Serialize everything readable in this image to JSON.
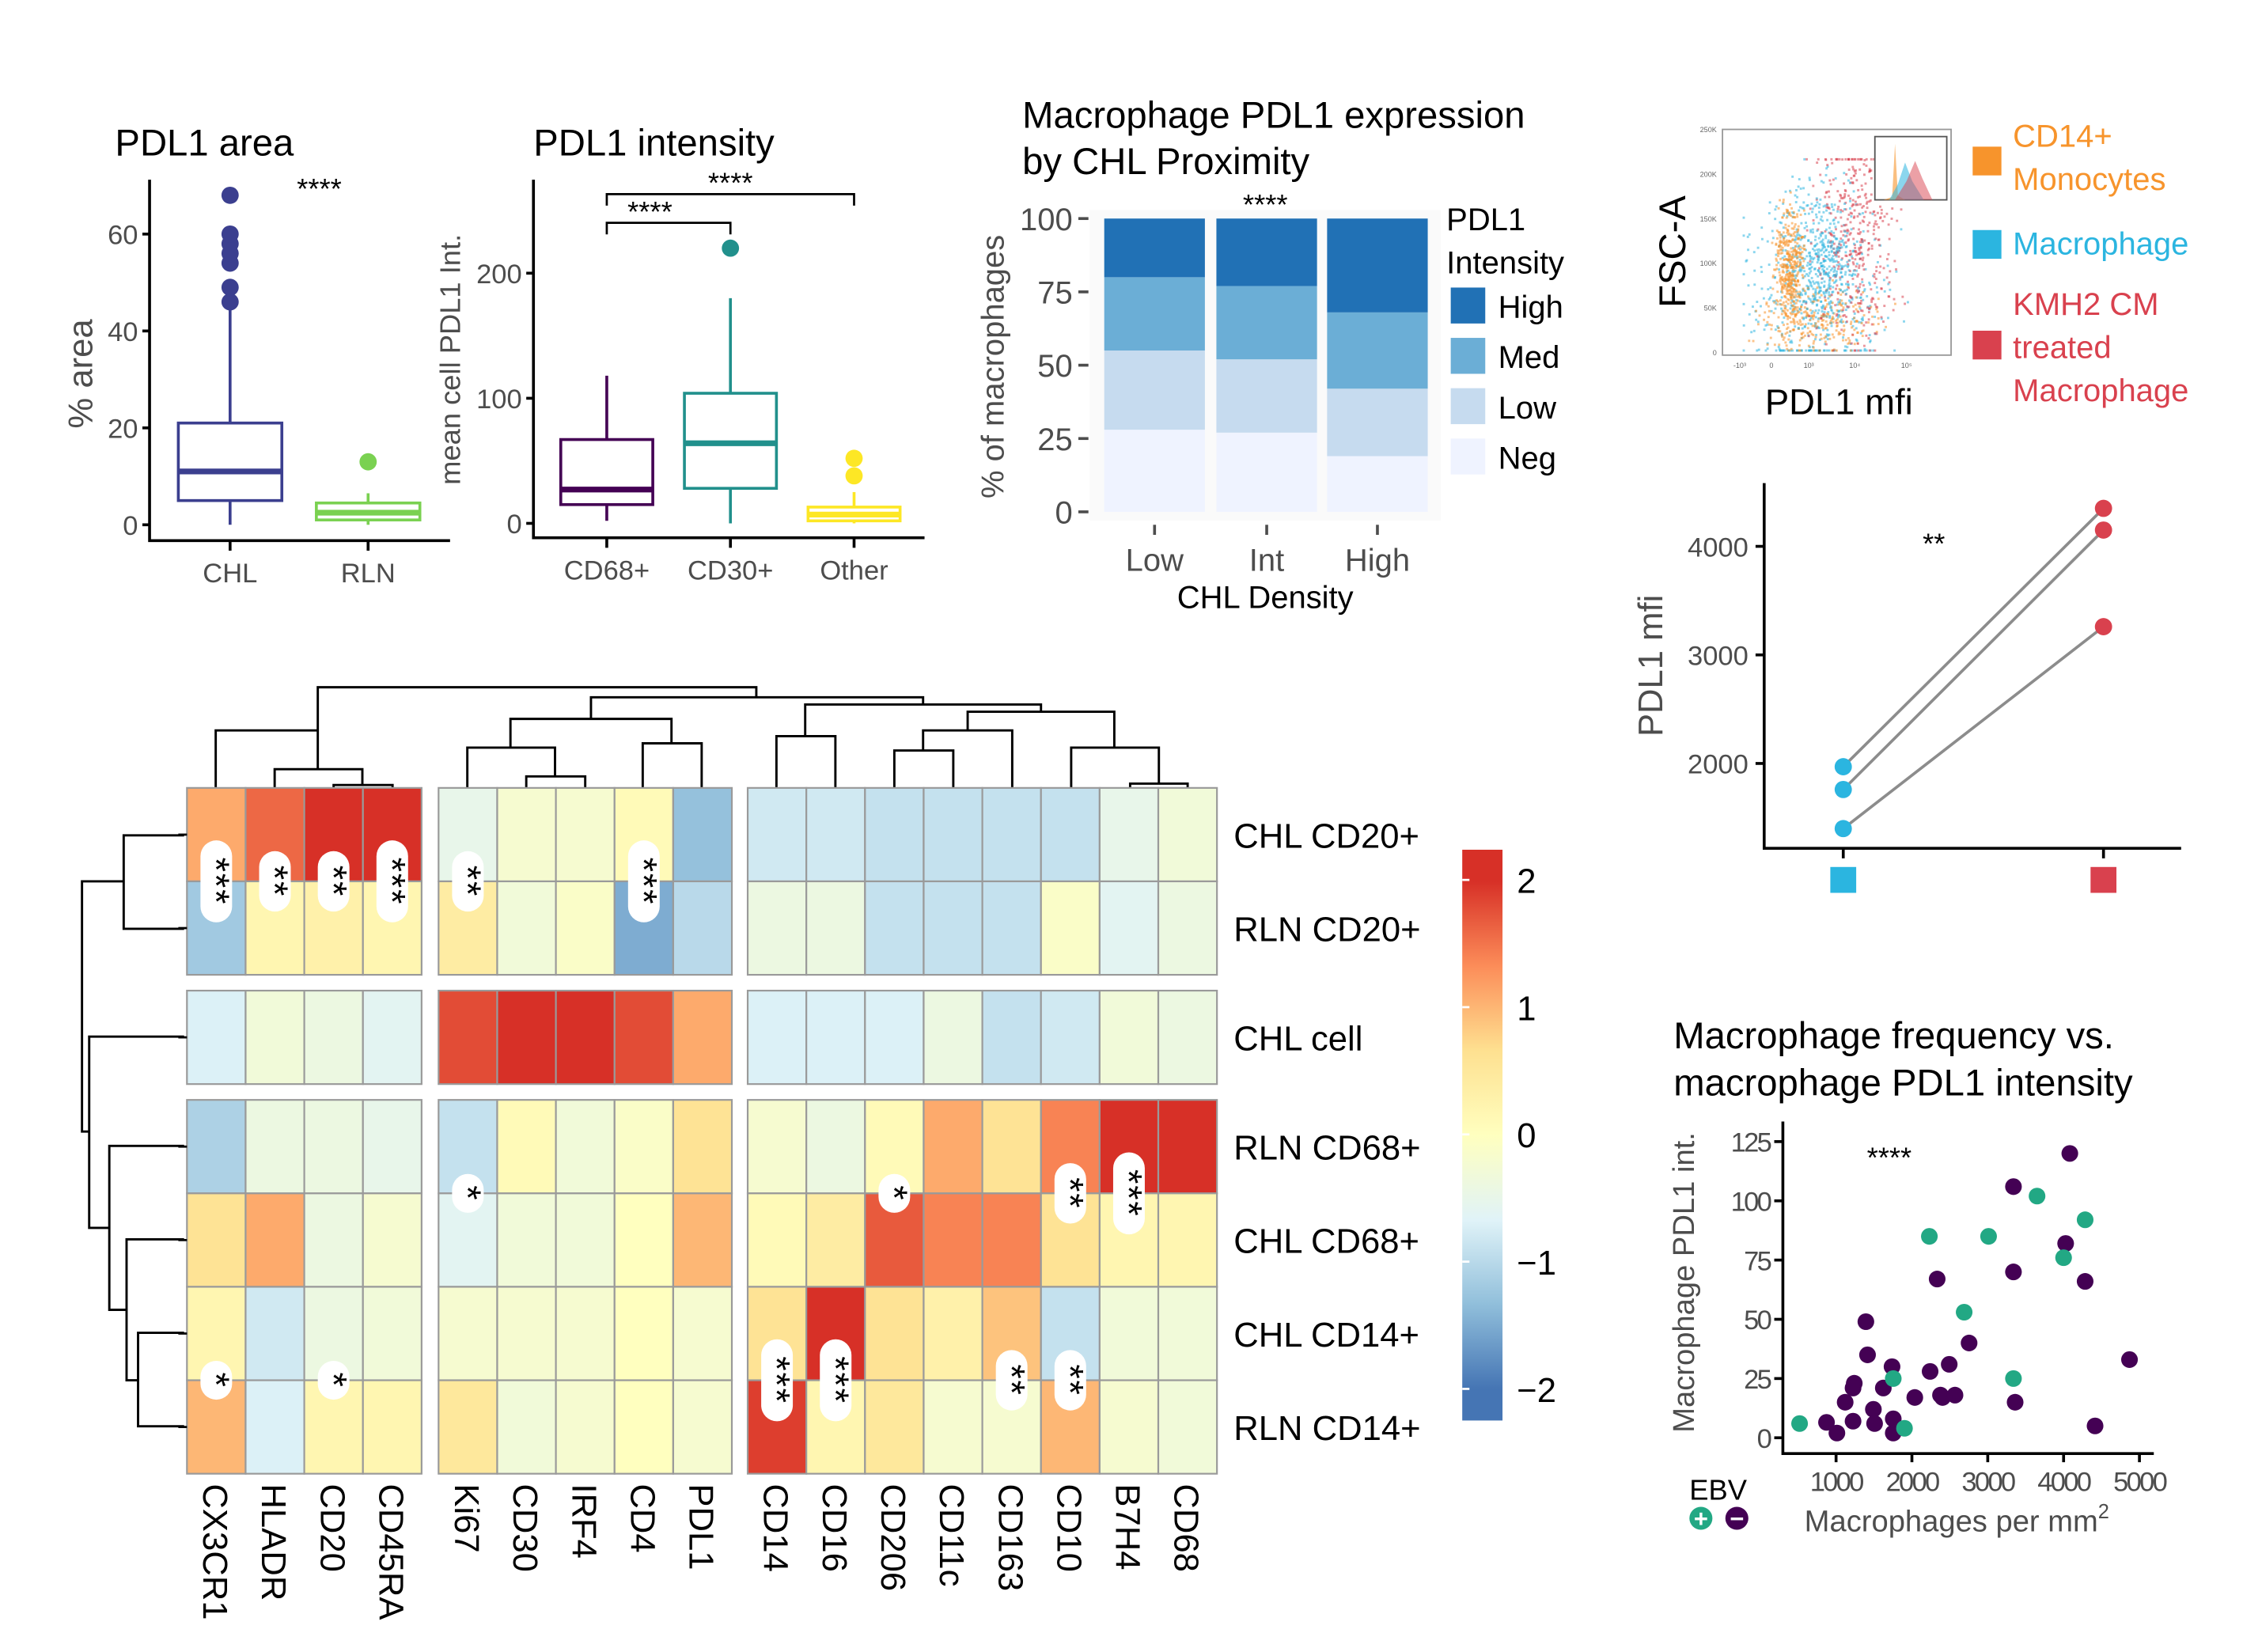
{
  "chart_data": [
    {
      "type": "box",
      "title": "PDL1 area",
      "ylabel": "% area",
      "ylim": [
        0,
        70
      ],
      "yticks": [
        "0",
        "20",
        "40",
        "60"
      ],
      "significance": "****",
      "categories": [
        "CHL",
        "RLN"
      ],
      "colors": [
        "#3b3f8f",
        "#7ad151"
      ],
      "boxes": [
        {
          "min": 0,
          "q1": 5,
          "median": 11,
          "q3": 21,
          "max": 45,
          "outliers": [
            46,
            49,
            54,
            56,
            58,
            60,
            68
          ]
        },
        {
          "min": 0,
          "q1": 1,
          "median": 2.5,
          "q3": 4.5,
          "max": 6.5,
          "outliers": [
            13
          ]
        }
      ]
    },
    {
      "type": "box",
      "title": "PDL1 intensity",
      "ylabel": "mean cell PDL1 Int.",
      "yticks": [
        "0",
        "100",
        "200"
      ],
      "categories": [
        "CD68+",
        "CD30+",
        "Other"
      ],
      "colors": [
        "#440154",
        "#21908c",
        "#fde725"
      ],
      "boxes": [
        {
          "min": 2,
          "q1": 15,
          "median": 27,
          "q3": 67,
          "max": 118,
          "outliers": []
        },
        {
          "min": 0,
          "q1": 28,
          "median": 64,
          "q3": 104,
          "max": 180,
          "outliers": [
            220
          ]
        },
        {
          "min": 0,
          "q1": 2,
          "median": 7,
          "q3": 13,
          "max": 25,
          "outliers": [
            38,
            52
          ]
        }
      ],
      "comparisons": [
        {
          "from": "CD68+",
          "to": "CD30+",
          "label": "****"
        },
        {
          "from": "CD68+",
          "to": "Other",
          "label": "****"
        }
      ]
    },
    {
      "type": "bar",
      "stacked": true,
      "title": "Macrophage PDL1 expression by CHL Proximity",
      "title_lines": [
        "Macrophage PDL1 expression",
        "by CHL Proximity"
      ],
      "xlabel": "CHL Density",
      "ylabel": "% of macrophages",
      "ylim": [
        0,
        100
      ],
      "yticks": [
        "0",
        "25",
        "50",
        "75",
        "100"
      ],
      "significance": "****",
      "categories": [
        "Low",
        "Int",
        "High"
      ],
      "legend_title": [
        "PDL1",
        "Intensity"
      ],
      "legend_position": "right",
      "series": [
        {
          "name": "Neg",
          "color": "#eff3ff",
          "values": [
            28,
            27,
            19
          ]
        },
        {
          "name": "Low",
          "color": "#c6dbef",
          "values": [
            27,
            25,
            23
          ]
        },
        {
          "name": "Med",
          "color": "#6baed6",
          "values": [
            25,
            25,
            26
          ]
        },
        {
          "name": "High",
          "color": "#2171b5",
          "values": [
            20,
            23,
            32
          ]
        }
      ]
    },
    {
      "type": "scatter",
      "subtype": "flow-cytometry",
      "xlabel": "PDL1 mfi",
      "ylabel": "FSC-A",
      "yticks": [
        "0",
        "50K",
        "100K",
        "150K",
        "200K",
        "250K"
      ],
      "xticks": [
        "-10³",
        "0",
        "10³",
        "10⁴",
        "10⁵"
      ],
      "legend": [
        {
          "label": [
            "CD14+",
            "Monocytes"
          ],
          "color": "#f7942c"
        },
        {
          "label": [
            "Macrophage"
          ],
          "color": "#2bb5e0"
        },
        {
          "label": [
            "KMH2 CM",
            "treated",
            "Macrophage"
          ],
          "color": "#d9414e"
        }
      ]
    },
    {
      "type": "line",
      "subtype": "paired",
      "ylabel": "PDL1 mfi",
      "ylim": [
        1200,
        4600
      ],
      "yticks": [
        "2000",
        "3000",
        "4000"
      ],
      "significance": "**",
      "groups": [
        {
          "marker_color": "#2bb5e0"
        },
        {
          "marker_color": "#d9414e"
        }
      ],
      "pairs": [
        [
          1970,
          4350
        ],
        [
          1760,
          4150
        ],
        [
          1400,
          3260
        ]
      ]
    },
    {
      "type": "scatter",
      "title_lines": [
        "Macrophage frequency vs.",
        "macrophage PDL1 intensity"
      ],
      "xlabel": "Macrophages per mm",
      "xlabel_sup": "2",
      "ylabel": "Macrophage PDL1 int.",
      "xlim": [
        300,
        5100
      ],
      "ylim": [
        -5,
        130
      ],
      "xticks": [
        "1000",
        "2000",
        "3000",
        "4000",
        "5000"
      ],
      "yticks": [
        "0",
        "25",
        "50",
        "75",
        "100",
        "125"
      ],
      "significance": "****",
      "legend_title": "EBV",
      "legend": [
        {
          "symbol": "+",
          "color": "#22a884"
        },
        {
          "symbol": "−",
          "color": "#440154"
        }
      ],
      "points": [
        {
          "x": 519,
          "y": 6,
          "ebv": "+"
        },
        {
          "x": 874,
          "y": 6.5,
          "ebv": "-"
        },
        {
          "x": 1011,
          "y": 2,
          "ebv": "-"
        },
        {
          "x": 1120,
          "y": 15,
          "ebv": "-"
        },
        {
          "x": 1224,
          "y": 7,
          "ebv": "-"
        },
        {
          "x": 1240,
          "y": 23,
          "ebv": "-"
        },
        {
          "x": 1224,
          "y": 21,
          "ebv": "-"
        },
        {
          "x": 1393,
          "y": 49,
          "ebv": "-"
        },
        {
          "x": 1415,
          "y": 35,
          "ebv": "-"
        },
        {
          "x": 1492,
          "y": 12,
          "ebv": "-"
        },
        {
          "x": 1508,
          "y": 6,
          "ebv": "-"
        },
        {
          "x": 1623,
          "y": 21,
          "ebv": "-"
        },
        {
          "x": 1738,
          "y": 30,
          "ebv": "-"
        },
        {
          "x": 1754,
          "y": 25,
          "ebv": "+"
        },
        {
          "x": 1754,
          "y": 8,
          "ebv": "-"
        },
        {
          "x": 1754,
          "y": 2,
          "ebv": "-"
        },
        {
          "x": 1902,
          "y": 4,
          "ebv": "+"
        },
        {
          "x": 2038,
          "y": 17,
          "ebv": "-"
        },
        {
          "x": 2240,
          "y": 28,
          "ebv": "-"
        },
        {
          "x": 2230,
          "y": 85,
          "ebv": "+"
        },
        {
          "x": 2333,
          "y": 67,
          "ebv": "-"
        },
        {
          "x": 2377,
          "y": 18,
          "ebv": "-"
        },
        {
          "x": 2404,
          "y": 17,
          "ebv": "-"
        },
        {
          "x": 2492,
          "y": 31,
          "ebv": "-"
        },
        {
          "x": 2568,
          "y": 18,
          "ebv": "-"
        },
        {
          "x": 2689,
          "y": 53,
          "ebv": "+"
        },
        {
          "x": 2754,
          "y": 40,
          "ebv": "-"
        },
        {
          "x": 3011,
          "y": 85,
          "ebv": "+"
        },
        {
          "x": 3339,
          "y": 106,
          "ebv": "-"
        },
        {
          "x": 3339,
          "y": 70,
          "ebv": "-"
        },
        {
          "x": 3339,
          "y": 25,
          "ebv": "+"
        },
        {
          "x": 3361,
          "y": 15,
          "ebv": "-"
        },
        {
          "x": 3650,
          "y": 102,
          "ebv": "+"
        },
        {
          "x": 4082,
          "y": 120,
          "ebv": "-"
        },
        {
          "x": 4027,
          "y": 82,
          "ebv": "-"
        },
        {
          "x": 4000,
          "y": 76,
          "ebv": "+"
        },
        {
          "x": 4284,
          "y": 92,
          "ebv": "+"
        },
        {
          "x": 4284,
          "y": 66,
          "ebv": "-"
        },
        {
          "x": 4415,
          "y": 5,
          "ebv": "-"
        },
        {
          "x": 4869,
          "y": 33,
          "ebv": "-"
        }
      ]
    },
    {
      "type": "heatmap",
      "colormap": "RdYlBu (reversed)",
      "zlim": [
        -2,
        2
      ],
      "colorbar_ticks": [
        "2",
        "1",
        "0",
        "−1",
        "−2"
      ],
      "column_groups": [
        [
          "CX3CR1",
          "HLADR",
          "CD20",
          "CD45RA"
        ],
        [
          "Ki67",
          "CD30",
          "IRF4",
          "CD4",
          "PDL1"
        ],
        [
          "CD14",
          "CD16",
          "CD206",
          "CD11c",
          "CD163",
          "CD10",
          "B7H4",
          "CD68"
        ]
      ],
      "row_groups": [
        [
          "CHL CD20+",
          "RLN CD20+"
        ],
        [
          "CHL cell"
        ],
        [
          "RLN CD68+",
          "CHL CD68+",
          "CHL CD14+",
          "RLN CD14+"
        ]
      ],
      "values": [
        [
          1.1,
          1.6,
          2.1,
          2.1,
          -0.5,
          -0.2,
          -0.2,
          0.1,
          -1.3,
          -0.8,
          -0.8,
          -0.9,
          -0.9,
          -0.9,
          -0.9,
          -0.5,
          -0.3
        ],
        [
          -1.2,
          0.2,
          0.3,
          0.2,
          0.4,
          -0.3,
          -0.1,
          -1.5,
          -1.0,
          -0.4,
          -0.4,
          -0.9,
          -0.9,
          -0.9,
          -0.1,
          -0.6,
          -0.4
        ],
        [
          -0.7,
          -0.3,
          -0.4,
          -0.6,
          1.8,
          2.1,
          2.1,
          1.8,
          1.1,
          -0.7,
          -0.7,
          -0.7,
          -0.4,
          -0.9,
          -0.8,
          -0.3,
          -0.4
        ],
        [
          -1.1,
          -0.4,
          -0.4,
          -0.5,
          -0.9,
          0.1,
          -0.3,
          -0.1,
          0.6,
          -0.2,
          -0.4,
          0.1,
          1.1,
          0.6,
          1.4,
          2.1,
          2.1
        ],
        [
          0.6,
          1.1,
          -0.4,
          -0.2,
          -0.6,
          -0.3,
          -0.3,
          0.0,
          1.0,
          0.1,
          0.4,
          1.7,
          1.4,
          1.4,
          0.6,
          0.2,
          0.2
        ],
        [
          0.2,
          -0.8,
          -0.4,
          -0.3,
          -0.2,
          -0.2,
          -0.2,
          0.0,
          -0.2,
          0.6,
          2.0,
          0.6,
          0.3,
          0.9,
          -0.9,
          -0.3,
          -0.3
        ],
        [
          1.0,
          -0.7,
          0.2,
          0.2,
          0.5,
          -0.3,
          -0.2,
          0.0,
          -0.2,
          1.9,
          0.2,
          0.5,
          -0.2,
          -0.2,
          1.0,
          -0.2,
          -0.3
        ]
      ],
      "significance": [
        {
          "rows": [
            "CHL CD20+",
            "RLN CD20+"
          ],
          "column": "CX3CR1",
          "label": "***"
        },
        {
          "rows": [
            "CHL CD20+",
            "RLN CD20+"
          ],
          "column": "HLADR",
          "label": "**"
        },
        {
          "rows": [
            "CHL CD20+",
            "RLN CD20+"
          ],
          "column": "CD20",
          "label": "**"
        },
        {
          "rows": [
            "CHL CD20+",
            "RLN CD20+"
          ],
          "column": "CD45RA",
          "label": "***"
        },
        {
          "rows": [
            "CHL CD20+",
            "RLN CD20+"
          ],
          "column": "Ki67",
          "label": "**"
        },
        {
          "rows": [
            "CHL CD20+",
            "RLN CD20+"
          ],
          "column": "CD4",
          "label": "***"
        },
        {
          "rows": [
            "RLN CD68+",
            "CHL CD68+"
          ],
          "column": "Ki67",
          "label": "*"
        },
        {
          "rows": [
            "RLN CD68+",
            "CHL CD68+"
          ],
          "column": "CD206",
          "label": "*"
        },
        {
          "rows": [
            "RLN CD68+",
            "CHL CD68+"
          ],
          "column": "CD10",
          "label": "**"
        },
        {
          "rows": [
            "RLN CD68+",
            "CHL CD68+"
          ],
          "column": "B7H4",
          "label": "***"
        },
        {
          "rows": [
            "CHL CD14+",
            "RLN CD14+"
          ],
          "column": "CX3CR1",
          "label": "*"
        },
        {
          "rows": [
            "CHL CD14+",
            "RLN CD14+"
          ],
          "column": "CD20",
          "label": "*"
        },
        {
          "rows": [
            "CHL CD14+",
            "RLN CD14+"
          ],
          "column": "CD14",
          "label": "***"
        },
        {
          "rows": [
            "CHL CD14+",
            "RLN CD14+"
          ],
          "column": "CD16",
          "label": "***"
        },
        {
          "rows": [
            "CHL CD14+",
            "RLN CD14+"
          ],
          "column": "CD163",
          "label": "**"
        },
        {
          "rows": [
            "CHL CD14+",
            "RLN CD14+"
          ],
          "column": "CD10",
          "label": "**"
        }
      ]
    }
  ]
}
